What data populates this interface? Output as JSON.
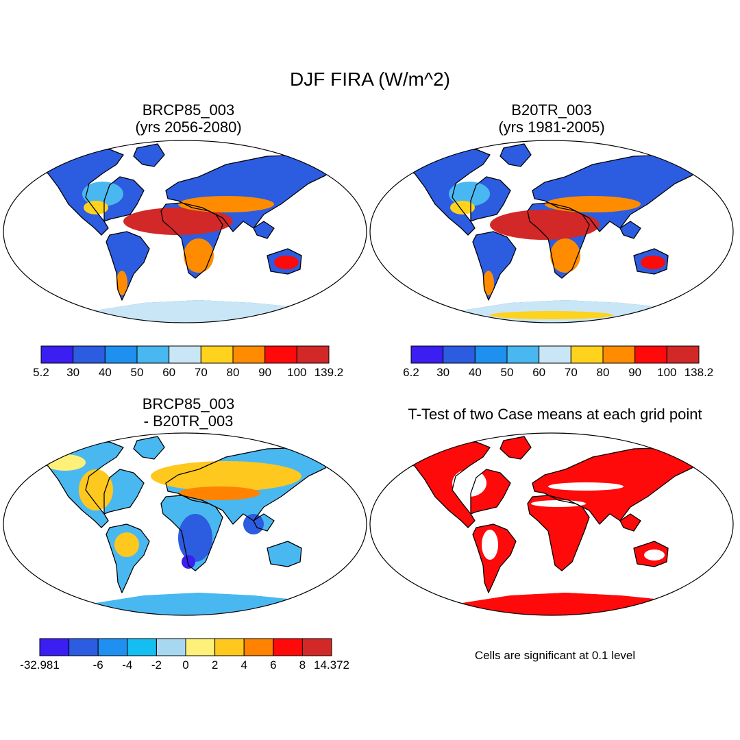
{
  "title": "DJF FIRA (W/m^2)",
  "panels": [
    {
      "id": "p1",
      "title_line1": "BRCP85_003",
      "title_line2": "(yrs 2056-2080)",
      "colorbar": {
        "labels": [
          "5.2",
          "30",
          "40",
          "50",
          "60",
          "70",
          "80",
          "90",
          "100",
          "139.2"
        ],
        "colors": [
          "#3a1ef2",
          "#2c5ce0",
          "#1e90f0",
          "#4ab8f0",
          "#c8e6f5",
          "#ffd21e",
          "#ff8c00",
          "#ff0a0a",
          "#d22828"
        ]
      }
    },
    {
      "id": "p2",
      "title_line1": "B20TR_003",
      "title_line2": "(yrs 1981-2005)",
      "colorbar": {
        "labels": [
          "6.2",
          "30",
          "40",
          "50",
          "60",
          "70",
          "80",
          "90",
          "100",
          "138.2"
        ],
        "colors": [
          "#3a1ef2",
          "#2c5ce0",
          "#1e90f0",
          "#4ab8f0",
          "#c8e6f5",
          "#ffd21e",
          "#ff8c00",
          "#ff0a0a",
          "#d22828"
        ]
      }
    },
    {
      "id": "p3",
      "title_line1": "BRCP85_003",
      "title_line2": "- B20TR_003",
      "colorbar": {
        "labels": [
          "-32.981",
          "",
          "-6",
          "-4",
          "-2",
          "0",
          "2",
          "4",
          "6",
          "8",
          "14.372"
        ],
        "colors": [
          "#3a1ef2",
          "#2c5ce0",
          "#1e90f0",
          "#14bef0",
          "#a8d8f0",
          "#fff07a",
          "#ffc81e",
          "#ff8200",
          "#ff0a0a",
          "#d22828"
        ]
      }
    },
    {
      "id": "p4",
      "title_line1": "T-Test of two Case means at each grid point",
      "note": "Cells are significant at 0.1 level"
    }
  ]
}
